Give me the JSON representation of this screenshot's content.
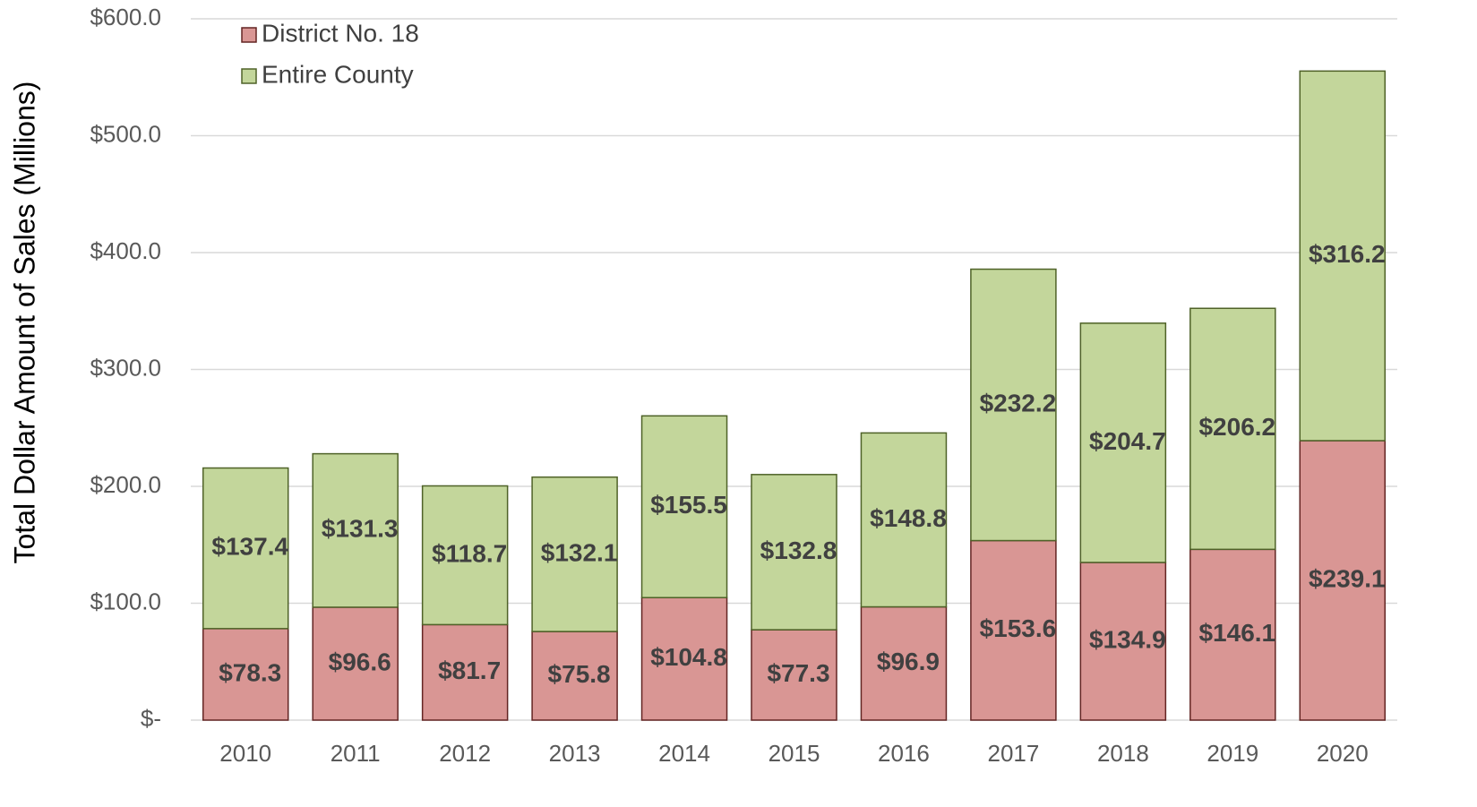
{
  "chart_data": {
    "type": "stacked_bar",
    "y_label": "Total Dollar Amount of Sales  (Millions)",
    "categories": [
      "2010",
      "2011",
      "2012",
      "2013",
      "2014",
      "2015",
      "2016",
      "2017",
      "2018",
      "2019",
      "2020"
    ],
    "series": [
      {
        "name": "District No. 18",
        "color": "#d99694",
        "edge_color": "#632523",
        "values": [
          78.3,
          96.6,
          81.7,
          75.8,
          104.8,
          77.3,
          96.9,
          153.6,
          134.9,
          146.1,
          239.1
        ],
        "value_labels": [
          "$78.3",
          "$96.6",
          "$81.7",
          "$75.8",
          "$104.8",
          "$77.3",
          "$96.9",
          "$153.6",
          "$134.9",
          "$146.1",
          "$239.1"
        ]
      },
      {
        "name": "Entire County",
        "color": "#c3d69b",
        "edge_color": "#4f6228",
        "values": [
          137.4,
          131.3,
          118.7,
          132.1,
          155.5,
          132.8,
          148.8,
          232.2,
          204.7,
          206.2,
          316.2
        ],
        "value_labels": [
          "$137.4",
          "$131.3",
          "$118.7",
          "$132.1",
          "$155.5",
          "$132.8",
          "$148.8",
          "$232.2",
          "$204.7",
          "$206.2",
          "$316.2"
        ]
      }
    ],
    "ylim": [
      0,
      600
    ],
    "yticks": [
      {
        "value": 0,
        "label": "$-"
      },
      {
        "value": 100,
        "label": "$100.0"
      },
      {
        "value": 200,
        "label": "$200.0"
      },
      {
        "value": 300,
        "label": "$300.0"
      },
      {
        "value": 400,
        "label": "$400.0"
      },
      {
        "value": 500,
        "label": "$500.0"
      },
      {
        "value": 600,
        "label": "$600.0"
      }
    ],
    "grid": true,
    "legend": "upper left"
  }
}
